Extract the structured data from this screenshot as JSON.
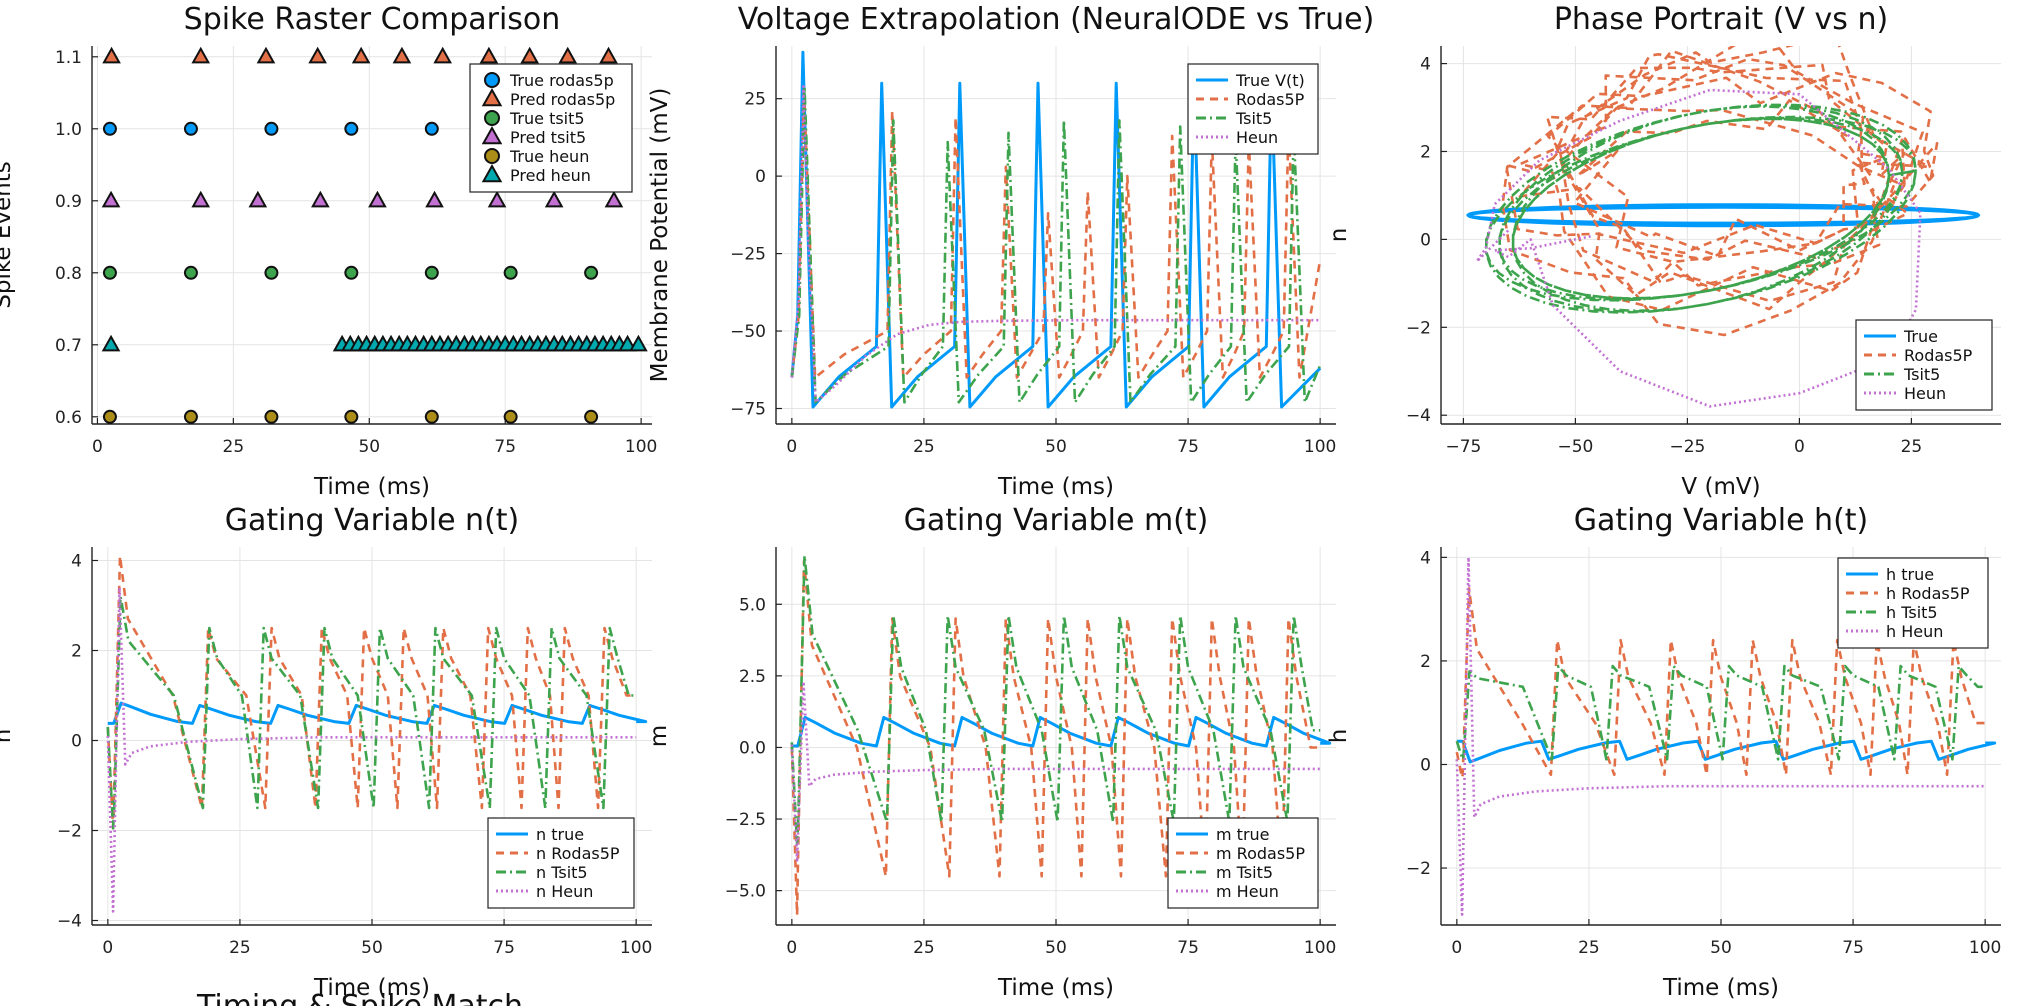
{
  "figure_caption": "Timing & Spike Match",
  "chart_data": [
    {
      "id": "raster",
      "type": "scatter",
      "title": "Spike Raster Comparison",
      "xlabel": "Time (ms)",
      "ylabel": "Spike Events",
      "xlim": [
        -1,
        102
      ],
      "ylim": [
        0.59,
        1.115
      ],
      "xticks": [
        0,
        25,
        50,
        75,
        100
      ],
      "yticks": [
        0.6,
        0.7,
        0.8,
        0.9,
        1.0,
        1.1
      ],
      "legend": "top-right",
      "series": [
        {
          "name": "True rodas5p",
          "marker": "circle",
          "color": "#009AFA",
          "y": 1.0,
          "x": [
            2.3,
            17.2,
            32.0,
            46.7,
            61.5
          ]
        },
        {
          "name": "Pred rodas5p",
          "marker": "triangle",
          "color": "#E26F46",
          "y": 1.1,
          "x": [
            2.6,
            19.0,
            31.0,
            40.5,
            48.5,
            56.0,
            63.5,
            72.0,
            79.5,
            86.5,
            94.0
          ]
        },
        {
          "name": "True tsit5",
          "marker": "circle",
          "color": "#3DA44D",
          "y": 0.8,
          "x": [
            2.3,
            17.2,
            32.0,
            46.7,
            61.5,
            76.0,
            90.8
          ]
        },
        {
          "name": "Pred tsit5",
          "marker": "triangle",
          "color": "#C271D2",
          "y": 0.9,
          "x": [
            2.5,
            19.0,
            29.5,
            41.0,
            51.5,
            62.0,
            73.5,
            84.0,
            95.0
          ]
        },
        {
          "name": "True heun",
          "marker": "circle",
          "color": "#AC8D18",
          "y": 0.6,
          "x": [
            2.3,
            17.2,
            32.0,
            46.7,
            61.5,
            76.0,
            90.8
          ]
        },
        {
          "name": "Pred heun",
          "marker": "triangle",
          "color": "#00A9AD",
          "y": 0.7,
          "x": [
            2.5,
            45,
            46.5,
            48,
            49.5,
            51,
            52.5,
            54,
            55.5,
            57,
            58.5,
            60,
            61.5,
            63,
            64.5,
            66,
            67.5,
            69,
            70.5,
            72,
            73.5,
            75,
            76.5,
            78,
            79.5,
            81,
            82.5,
            84,
            85.5,
            87,
            88.5,
            90,
            91.5,
            93,
            94.5,
            96,
            97.5,
            99.5
          ]
        }
      ]
    },
    {
      "id": "voltage",
      "type": "line",
      "title": "Voltage Extrapolation (NeuralODE vs True)",
      "xlabel": "Time (ms)",
      "ylabel": "Membrane Potential (mV)",
      "xlim": [
        -3,
        103
      ],
      "ylim": [
        -80,
        42
      ],
      "xticks": [
        0,
        25,
        50,
        75,
        100
      ],
      "yticks": [
        -75,
        -50,
        -25,
        0,
        25
      ],
      "legend": "top-right",
      "series": [
        {
          "name": "True V(t)",
          "color": "#009AFA",
          "dash": "solid",
          "spikes": [
            2.1,
            17.0,
            31.8,
            46.6,
            61.4,
            76.1,
            90.8
          ],
          "peak": 30,
          "first_peak": 40,
          "reset": -74.5,
          "pre": -55,
          "rise": 0.6,
          "fall": 1.6,
          "x_end": 100,
          "y_end": -62
        },
        {
          "name": "Rodas5P",
          "color": "#E26F46",
          "dash": "8,6",
          "spikes": [
            2.3,
            19.0,
            31.0,
            40.5,
            48.5,
            56.0,
            63.5,
            72.0,
            79.5,
            86.5,
            94.0
          ],
          "peaks": [
            27,
            21,
            19,
            3,
            -12,
            -5,
            0,
            13,
            12,
            11,
            16
          ],
          "reset": -65,
          "pre": -50,
          "rise": 0.5,
          "fall": 1.8,
          "x_end": 100,
          "y_end": -27
        },
        {
          "name": "Tsit5",
          "color": "#3DA44D",
          "dash": "10,4,2,4",
          "spikes": [
            2.4,
            19.2,
            29.5,
            41.0,
            51.5,
            62.0,
            73.5,
            84.0,
            95.0
          ],
          "peaks": [
            29,
            18,
            11,
            14,
            18,
            18,
            16,
            12,
            15
          ],
          "reset": -73,
          "pre": -55,
          "rise": 0.5,
          "fall": 1.8,
          "x_end": 100,
          "y_end": -61
        },
        {
          "name": "Heun",
          "color": "#C271D2",
          "dash": "2,3",
          "points": [
            [
              0,
              -65
            ],
            [
              1.3,
              -40
            ],
            [
              2.2,
              29
            ],
            [
              3.1,
              -20
            ],
            [
              4.5,
              -73
            ],
            [
              8,
              -68
            ],
            [
              14,
              -58
            ],
            [
              20,
              -51
            ],
            [
              26,
              -48
            ],
            [
              32,
              -47
            ],
            [
              40,
              -46.7
            ],
            [
              55,
              -46.5
            ],
            [
              100,
              -46.5
            ]
          ]
        }
      ]
    },
    {
      "id": "phase",
      "type": "line",
      "title": "Phase Portrait (V vs n)",
      "xlabel": "V (mV)",
      "ylabel": "n",
      "xlim": [
        -80,
        45
      ],
      "ylim": [
        -4.2,
        4.4
      ],
      "xticks": [
        -75,
        -50,
        -25,
        0,
        25
      ],
      "yticks": [
        -4,
        -2,
        0,
        2,
        4
      ],
      "legend": "bottom-right",
      "series": [
        {
          "name": "True",
          "color": "#009AFA",
          "dash": "solid"
        },
        {
          "name": "Rodas5P",
          "color": "#E26F46",
          "dash": "8,6"
        },
        {
          "name": "Tsit5",
          "color": "#3DA44D",
          "dash": "10,4,2,4"
        },
        {
          "name": "Heun",
          "color": "#C271D2",
          "dash": "2,3"
        }
      ]
    },
    {
      "id": "gate_n",
      "type": "line",
      "title": "Gating Variable n(t)",
      "xlabel": "Time (ms)",
      "ylabel": "n",
      "xlim": [
        -3,
        103
      ],
      "ylim": [
        -4.1,
        4.3
      ],
      "xticks": [
        0,
        25,
        50,
        75,
        100
      ],
      "yticks": [
        -4,
        -2,
        0,
        2,
        4
      ],
      "legend": "bottom-right",
      "series": [
        {
          "name": "n true",
          "color": "#009AFA",
          "dash": "solid",
          "base": 0.38,
          "amp": 0.4,
          "first_amp": 0.45
        },
        {
          "name": "n Rodas5P",
          "color": "#E26F46",
          "dash": "8,6",
          "base": 1.0,
          "max": 2.5,
          "min": -1.5,
          "first_max": 4.1
        },
        {
          "name": "n Tsit5",
          "color": "#3DA44D",
          "dash": "10,4,2,4",
          "base": 1.0,
          "max": 2.5,
          "min": -1.5,
          "first_max": 3.2
        },
        {
          "name": "n Heun",
          "color": "#C271D2",
          "dash": "2,3",
          "settle": 0.07,
          "dip": -3.8,
          "first_max": 3.4
        }
      ]
    },
    {
      "id": "gate_m",
      "type": "line",
      "title": "Gating Variable m(t)",
      "xlabel": "Time (ms)",
      "ylabel": "m",
      "xlim": [
        -3,
        103
      ],
      "ylim": [
        -6.2,
        7.0
      ],
      "xticks": [
        0,
        25,
        50,
        75,
        100
      ],
      "yticks": [
        -5.0,
        -2.5,
        0.0,
        2.5,
        5.0
      ],
      "legend": "bottom-right",
      "series": [
        {
          "name": "m true",
          "color": "#009AFA",
          "dash": "solid",
          "base": 0.05,
          "amp": 1.0,
          "first_amp": 1.0
        },
        {
          "name": "m Rodas5P",
          "color": "#E26F46",
          "dash": "8,6",
          "base": 0.0,
          "max": 4.5,
          "min": -4.5,
          "first_max": 6.5
        },
        {
          "name": "m Tsit5",
          "color": "#3DA44D",
          "dash": "10,4,2,4",
          "base": 0.6,
          "max": 4.6,
          "min": -2.6,
          "first_max": 6.7
        },
        {
          "name": "m Heun",
          "color": "#C271D2",
          "dash": "2,3",
          "settle": -0.75,
          "dip": -4.0,
          "first_max": 2.3
        }
      ]
    },
    {
      "id": "gate_h",
      "type": "line",
      "title": "Gating Variable h(t)",
      "xlabel": "Time (ms)",
      "ylabel": "h",
      "xlim": [
        -3,
        103
      ],
      "ylim": [
        -3.1,
        4.2
      ],
      "xticks": [
        0,
        25,
        50,
        75,
        100
      ],
      "yticks": [
        -2,
        0,
        2,
        4
      ],
      "legend": "top-right",
      "series": [
        {
          "name": "h true",
          "color": "#009AFA",
          "dash": "solid",
          "base": 0.45,
          "amp": -0.35,
          "first_amp": -0.4
        },
        {
          "name": "h Rodas5P",
          "color": "#E26F46",
          "dash": "8,6",
          "base": 0.8,
          "max": 2.4,
          "min": -0.2,
          "first_max": 3.4
        },
        {
          "name": "h Tsit5",
          "color": "#3DA44D",
          "dash": "10,4,2,4",
          "base": 1.5,
          "max": 1.9,
          "min": 0.1,
          "first_max": 1.8
        },
        {
          "name": "h Heun",
          "color": "#C271D2",
          "dash": "2,3",
          "settle": -0.42,
          "dip": -2.9,
          "first_max": 4.0
        }
      ]
    }
  ]
}
